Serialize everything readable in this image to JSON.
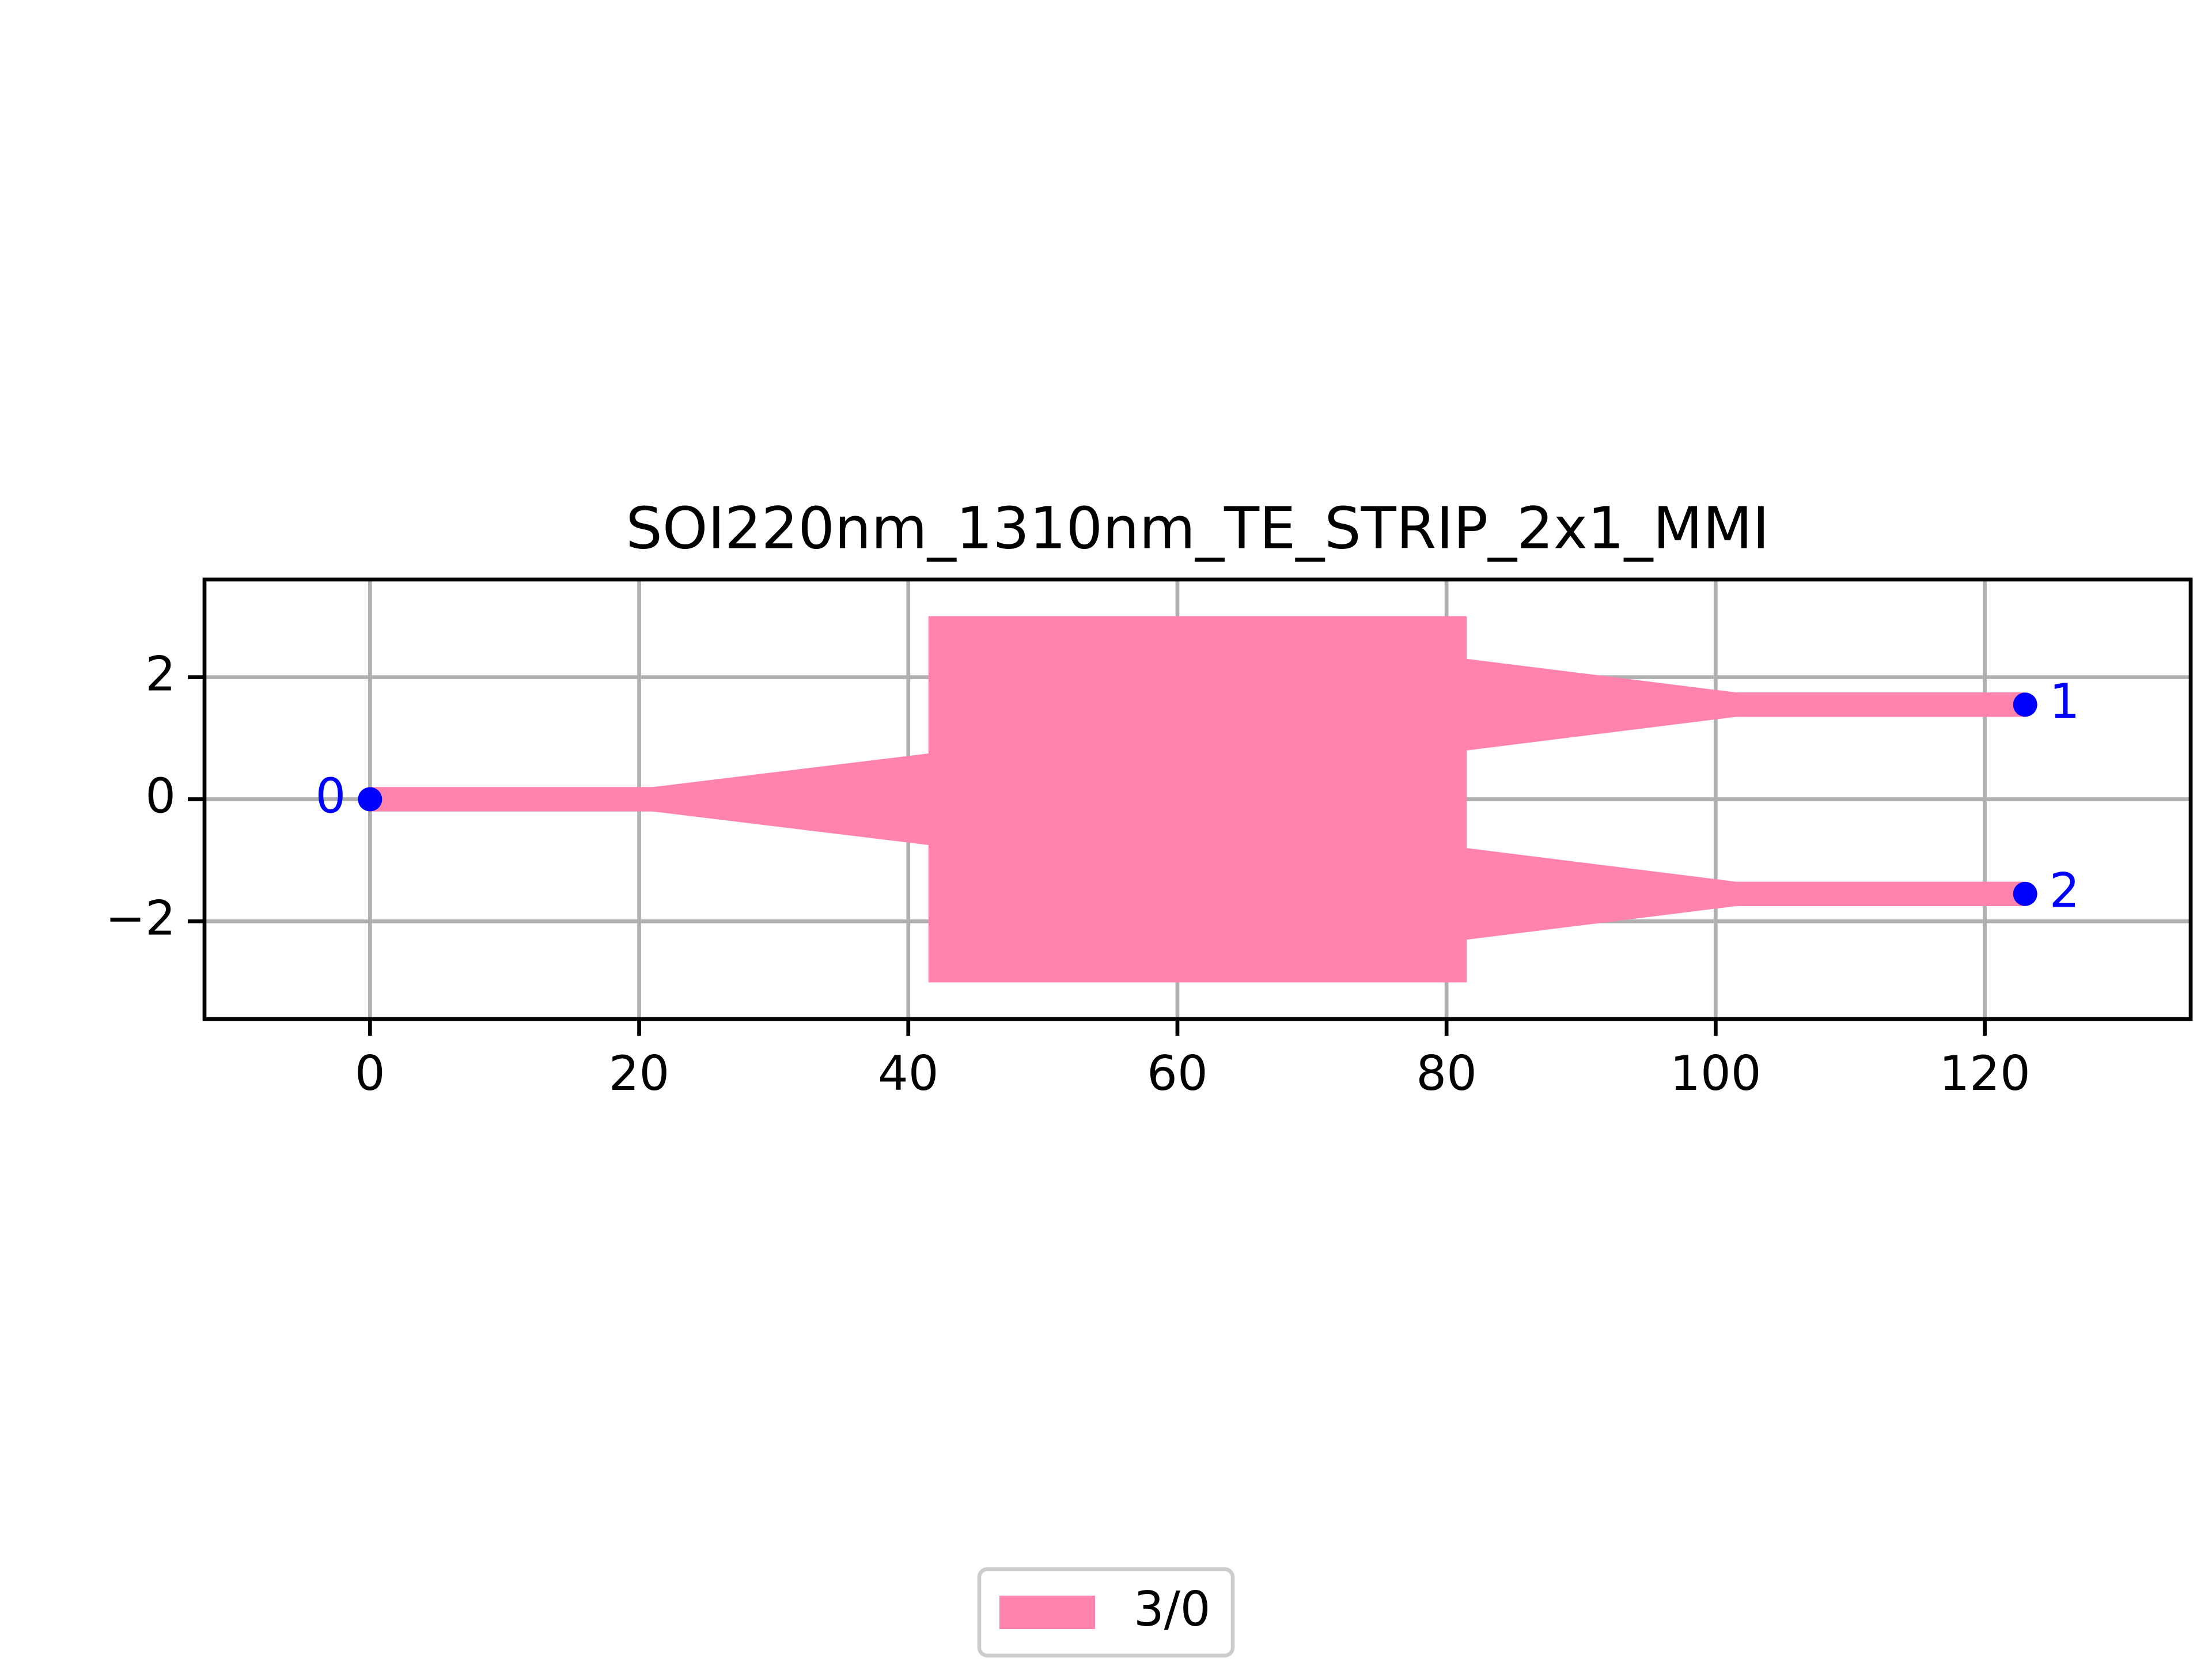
{
  "chart_data": {
    "type": "layout",
    "title": "SOI220nm_1310nm_TE_STRIP_2x1_MMI",
    "xlim": [
      -12.3,
      135.3
    ],
    "ylim": [
      -3.6,
      3.6
    ],
    "xticks": [
      0,
      20,
      40,
      60,
      80,
      100,
      120
    ],
    "yticks": [
      {
        "value": -2,
        "label": "−2"
      },
      0,
      2
    ],
    "grid": true,
    "legend": "lower center",
    "series": [
      {
        "name": "3/0",
        "color": "#ff83aa",
        "x": [
          0,
          0,
          21,
          41.5,
          41.5,
          81.5,
          81.5,
          101.5,
          123,
          123,
          101.5,
          81.5,
          81.5,
          101.5,
          123,
          123,
          101.5,
          81.5,
          81.5,
          41.5,
          41.5,
          21
        ],
        "y": [
          -0.2,
          0.2,
          0.2,
          0.75,
          3,
          3,
          2.3,
          1.75,
          1.75,
          1.35,
          1.35,
          0.8,
          -0.8,
          -1.35,
          -1.35,
          -1.75,
          -1.75,
          -2.3,
          -3,
          -3,
          -0.75,
          -0.2
        ]
      }
    ],
    "ports": {
      "color": "#0000ff",
      "x": [
        0,
        123,
        123
      ],
      "y": [
        0,
        1.55,
        -1.55
      ],
      "labels": [
        "0",
        "1",
        "2"
      ]
    }
  }
}
